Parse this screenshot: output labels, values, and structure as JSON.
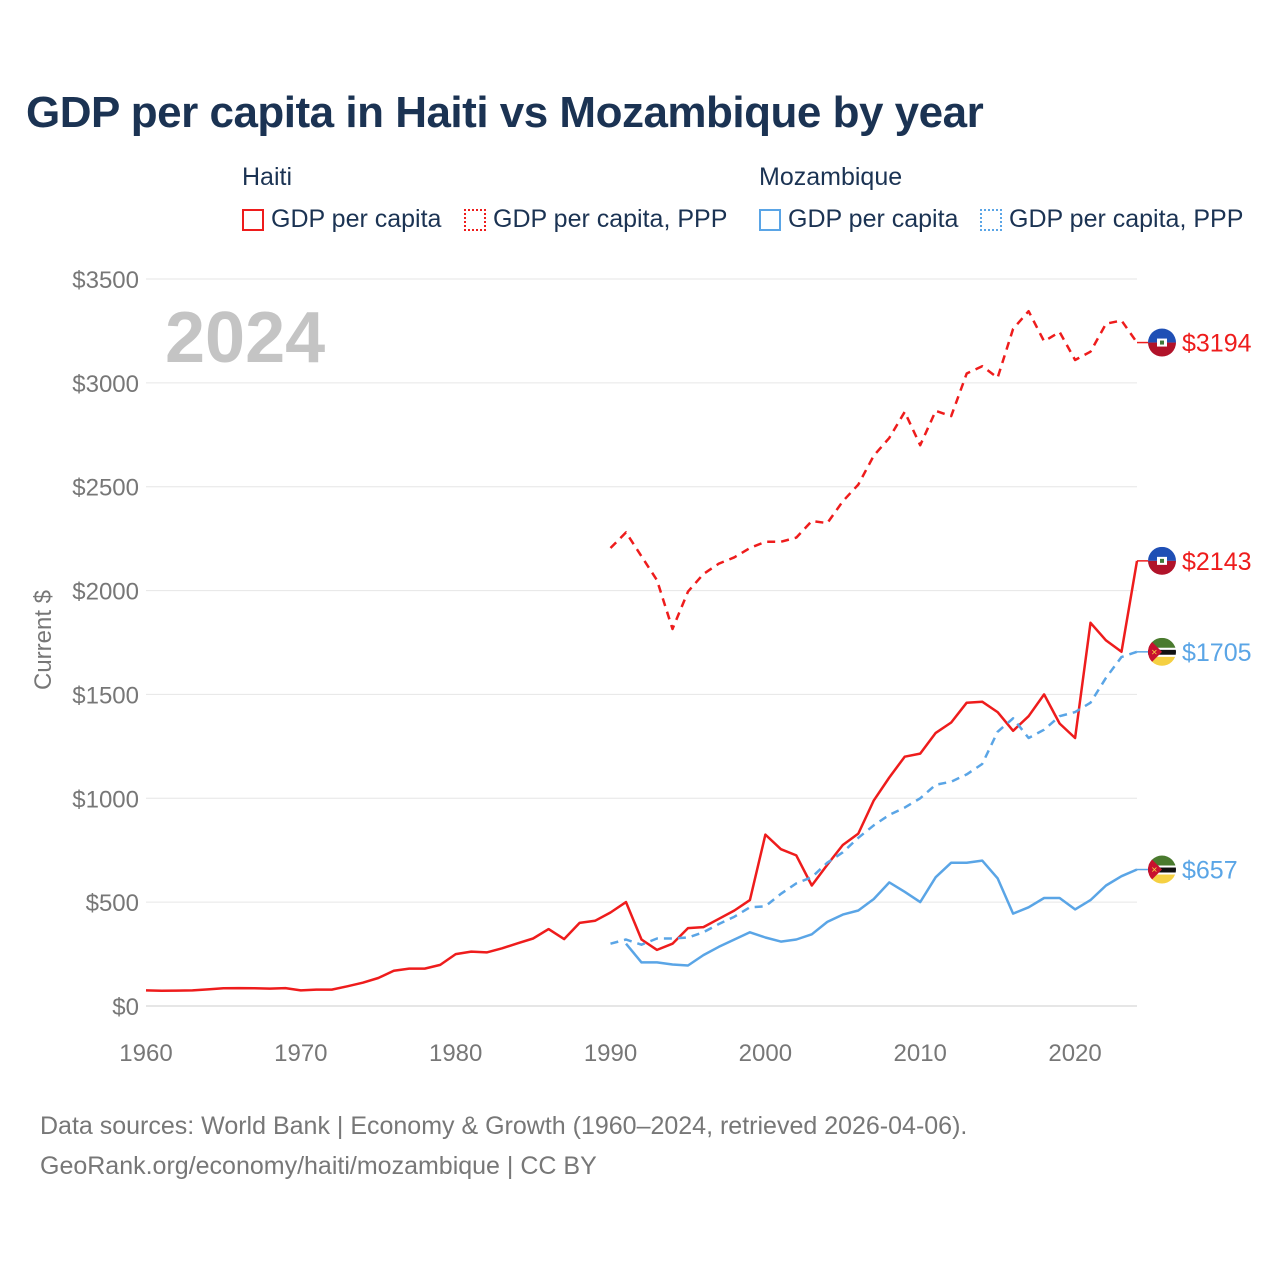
{
  "title": "GDP per capita in Haiti vs Mozambique by year",
  "legend": {
    "groups": [
      {
        "name": "Haiti",
        "color": "#ee1c1c",
        "items": [
          {
            "label": "GDP per capita",
            "style": "solid"
          },
          {
            "label": "GDP per capita, PPP",
            "style": "dotted"
          }
        ]
      },
      {
        "name": "Mozambique",
        "color": "#5aa5e6",
        "items": [
          {
            "label": "GDP per capita",
            "style": "solid"
          },
          {
            "label": "GDP per capita, PPP",
            "style": "dotted"
          }
        ]
      }
    ]
  },
  "year_label": "2024",
  "sources": {
    "line1": "Data sources: World Bank | Economy & Growth (1960–2024, retrieved 2026-04-06).",
    "line2": "GeoRank.org/economy/haiti/mozambique | CC BY"
  },
  "chart_data": {
    "type": "line",
    "title": "GDP per capita in Haiti vs Mozambique by year",
    "xlabel": "",
    "ylabel": "Current $",
    "xlim": [
      1960,
      2024
    ],
    "ylim": [
      0,
      3500
    ],
    "x_ticks": [
      1960,
      1970,
      1980,
      1990,
      2000,
      2010,
      2020
    ],
    "x_tick_labels": [
      "1960",
      "1970",
      "1980",
      "1990",
      "2000",
      "2010",
      "2020"
    ],
    "y_ticks": [
      0,
      500,
      1000,
      1500,
      2000,
      2500,
      3000,
      3500
    ],
    "y_tick_labels": [
      "$0",
      "$500",
      "$1000",
      "$1500",
      "$2000",
      "$2500",
      "$3000",
      "$3500"
    ],
    "grid": true,
    "series": [
      {
        "name": "Haiti GDP per capita",
        "country": "Haiti",
        "color": "#ee1c1c",
        "dash": "solid",
        "end_label": "$2143",
        "flag": "haiti",
        "x": [
          1960,
          1961,
          1962,
          1963,
          1964,
          1965,
          1966,
          1967,
          1968,
          1969,
          1970,
          1971,
          1972,
          1973,
          1974,
          1975,
          1976,
          1977,
          1978,
          1979,
          1980,
          1981,
          1982,
          1983,
          1984,
          1985,
          1986,
          1987,
          1988,
          1989,
          1990,
          1991,
          1992,
          1993,
          1994,
          1995,
          1996,
          1997,
          1998,
          1999,
          2000,
          2001,
          2002,
          2003,
          2004,
          2005,
          2006,
          2007,
          2008,
          2009,
          2010,
          2011,
          2012,
          2013,
          2014,
          2015,
          2016,
          2017,
          2018,
          2019,
          2020,
          2021,
          2022,
          2023,
          2024
        ],
        "values": [
          75,
          73,
          74,
          75,
          80,
          85,
          86,
          85,
          84,
          86,
          75,
          79,
          79,
          95,
          112,
          135,
          170,
          180,
          180,
          198,
          250,
          262,
          258,
          278,
          302,
          325,
          370,
          322,
          400,
          410,
          450,
          500,
          320,
          270,
          300,
          375,
          380,
          420,
          460,
          510,
          825,
          755,
          725,
          580,
          680,
          775,
          830,
          990,
          1100,
          1200,
          1215,
          1315,
          1365,
          1460,
          1465,
          1415,
          1325,
          1395,
          1500,
          1360,
          1290,
          1845,
          1760,
          1705,
          2143
        ]
      },
      {
        "name": "Haiti GDP per capita, PPP",
        "country": "Haiti",
        "color": "#ee1c1c",
        "dash": "dashed",
        "end_label": "$3194",
        "flag": "haiti",
        "x": [
          1990,
          1991,
          1992,
          1993,
          1994,
          1995,
          1996,
          1997,
          1998,
          1999,
          2000,
          2001,
          2002,
          2003,
          2004,
          2005,
          2006,
          2007,
          2008,
          2009,
          2010,
          2011,
          2012,
          2013,
          2014,
          2015,
          2016,
          2017,
          2018,
          2019,
          2020,
          2021,
          2022,
          2023,
          2024
        ],
        "values": [
          2205,
          2280,
          2165,
          2050,
          1815,
          1995,
          2080,
          2130,
          2160,
          2205,
          2235,
          2235,
          2255,
          2335,
          2325,
          2430,
          2510,
          2650,
          2735,
          2860,
          2700,
          2865,
          2840,
          3045,
          3080,
          3025,
          3260,
          3345,
          3200,
          3245,
          3110,
          3150,
          3285,
          3300,
          3194
        ]
      },
      {
        "name": "Mozambique GDP per capita",
        "country": "Mozambique",
        "color": "#5aa5e6",
        "dash": "solid",
        "end_label": "$657",
        "flag": "mozambique",
        "x": [
          1991,
          1992,
          1993,
          1994,
          1995,
          1996,
          1997,
          1998,
          1999,
          2000,
          2001,
          2002,
          2003,
          2004,
          2005,
          2006,
          2007,
          2008,
          2009,
          2010,
          2011,
          2012,
          2013,
          2014,
          2015,
          2016,
          2017,
          2018,
          2019,
          2020,
          2021,
          2022,
          2023,
          2024
        ],
        "values": [
          300,
          210,
          210,
          200,
          195,
          245,
          285,
          320,
          355,
          330,
          310,
          320,
          345,
          405,
          440,
          460,
          515,
          595,
          550,
          500,
          620,
          690,
          690,
          700,
          615,
          445,
          475,
          520,
          520,
          465,
          510,
          580,
          625,
          657
        ]
      },
      {
        "name": "Mozambique GDP per capita, PPP",
        "country": "Mozambique",
        "color": "#5aa5e6",
        "dash": "dashed",
        "end_label": "$1705",
        "flag": "mozambique",
        "x": [
          1990,
          1991,
          1992,
          1993,
          1994,
          1995,
          1996,
          1997,
          1998,
          1999,
          2000,
          2001,
          2002,
          2003,
          2004,
          2005,
          2006,
          2007,
          2008,
          2009,
          2010,
          2011,
          2012,
          2013,
          2014,
          2015,
          2016,
          2017,
          2018,
          2019,
          2020,
          2021,
          2022,
          2023,
          2024
        ],
        "values": [
          300,
          320,
          295,
          325,
          325,
          330,
          355,
          395,
          430,
          475,
          480,
          540,
          590,
          620,
          690,
          740,
          810,
          870,
          920,
          955,
          1000,
          1065,
          1080,
          1115,
          1165,
          1320,
          1385,
          1290,
          1330,
          1395,
          1415,
          1460,
          1580,
          1680,
          1705
        ]
      }
    ]
  }
}
